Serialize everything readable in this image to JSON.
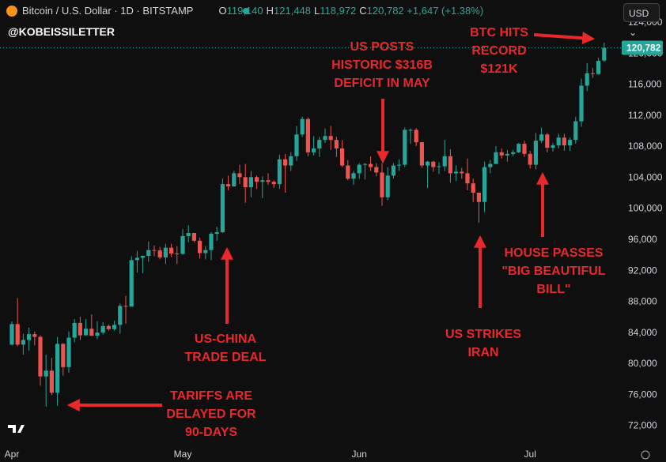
{
  "header": {
    "title": "Bitcoin / U.S. Dollar · 1D · BITSTAMP",
    "ohlc": [
      {
        "key": "O",
        "value": "119,140"
      },
      {
        "key": "H",
        "value": "121,448"
      },
      {
        "key": "L",
        "value": "118,972"
      },
      {
        "key": "C",
        "value": "120,782"
      }
    ],
    "change": "+1,647 (+1.38%)",
    "watermark": "@KOBEISSILETTER",
    "currency": "USD"
  },
  "chart_data": {
    "type": "candlestick",
    "up_color": "#26a69a",
    "down_color": "#ef5350",
    "grid": false,
    "categories": [
      "Apr",
      null,
      null,
      null,
      null,
      null,
      null,
      null,
      null,
      null,
      null,
      null,
      null,
      null,
      null,
      null,
      null,
      null,
      null,
      null,
      null,
      null,
      null,
      null,
      null,
      null,
      null,
      null,
      null,
      null,
      "May",
      null,
      null,
      null,
      null,
      null,
      null,
      null,
      null,
      null,
      null,
      null,
      null,
      null,
      null,
      null,
      null,
      null,
      null,
      null,
      null,
      null,
      null,
      null,
      null,
      null,
      null,
      null,
      null,
      null,
      null,
      "Jun",
      null,
      null,
      null,
      null,
      null,
      null,
      null,
      null,
      null,
      null,
      null,
      null,
      null,
      null,
      null,
      null,
      null,
      null,
      null,
      null,
      null,
      null,
      null,
      null,
      null,
      null,
      null,
      null,
      null,
      "Jul",
      null,
      null,
      null,
      null,
      null,
      null,
      null,
      null,
      null,
      null,
      null,
      null,
      null
    ],
    "open": [
      82500,
      85150,
      82500,
      83100,
      83850,
      83500,
      78400,
      79150,
      76300,
      82600,
      79600,
      83400,
      85300,
      83700,
      84550,
      83650,
      84050,
      84900,
      84500,
      85050,
      87500,
      87400,
      93400,
      93700,
      93950,
      94700,
      94650,
      93750,
      95000,
      94250,
      94200,
      96500,
      96900,
      95900,
      94300,
      94700,
      96800,
      97000,
      103200,
      102900,
      104600,
      104100,
      102800,
      104100,
      103500,
      103700,
      103500,
      103200,
      106400,
      105600,
      106800,
      109600,
      111600,
      107300,
      107800,
      108900,
      109400,
      108900,
      107800,
      105600,
      103900,
      104600,
      105700,
      105800,
      105400,
      104700,
      101500,
      104300,
      105600,
      105700,
      110200,
      110200,
      108600,
      105600,
      106100,
      105400,
      105500,
      106800,
      104600,
      104800,
      104600,
      103300,
      102100,
      100900,
      105400,
      105800,
      107300,
      106900,
      107100,
      107300,
      108400,
      107100,
      105700,
      108800,
      109600,
      107900,
      108200,
      109200,
      108200,
      108900,
      111300,
      115900,
      117500,
      117400,
      119140
    ],
    "high": [
      85500,
      88500,
      83900,
      84700,
      84200,
      83700,
      81200,
      80800,
      83500,
      82700,
      84200,
      85800,
      86100,
      85800,
      86400,
      85500,
      85400,
      85100,
      85600,
      87800,
      88800,
      93900,
      94600,
      94000,
      95800,
      95300,
      95100,
      95500,
      95500,
      95200,
      97400,
      97900,
      96900,
      96300,
      95200,
      97000,
      97700,
      103900,
      104300,
      104900,
      105700,
      105800,
      104900,
      104300,
      104200,
      104600,
      103700,
      107000,
      107100,
      107300,
      110700,
      111900,
      111800,
      109400,
      109300,
      110400,
      110700,
      109300,
      108900,
      106300,
      104900,
      105900,
      105900,
      106800,
      105900,
      105900,
      105400,
      105900,
      106400,
      110500,
      110400,
      110400,
      108600,
      106200,
      106200,
      106000,
      108900,
      107700,
      105600,
      105300,
      106500,
      103900,
      102100,
      106100,
      106300,
      108100,
      107800,
      107600,
      107600,
      108500,
      108800,
      107500,
      109800,
      110500,
      109800,
      108500,
      109700,
      109700,
      109200,
      111900,
      116800,
      118800,
      118200,
      119500,
      121448
    ],
    "low": [
      82400,
      82300,
      81200,
      81700,
      82400,
      77200,
      74500,
      76000,
      74600,
      78500,
      78900,
      82800,
      83100,
      83700,
      83600,
      83200,
      83800,
      84300,
      84300,
      83900,
      85200,
      87400,
      91800,
      91700,
      93200,
      93900,
      93500,
      92900,
      93800,
      92900,
      94100,
      95700,
      95700,
      93600,
      93500,
      93400,
      95900,
      96900,
      102400,
      102900,
      103200,
      100800,
      101500,
      102600,
      101400,
      103100,
      102700,
      102600,
      102100,
      104900,
      106200,
      109300,
      106800,
      106900,
      106700,
      108500,
      107600,
      106700,
      105400,
      103700,
      103100,
      103900,
      103800,
      104900,
      104200,
      100400,
      101100,
      103900,
      104900,
      105400,
      108400,
      108100,
      105300,
      102700,
      104800,
      104500,
      104900,
      103400,
      103600,
      103900,
      102400,
      100900,
      98200,
      99600,
      104600,
      105800,
      106500,
      106100,
      106800,
      107200,
      106700,
      105200,
      105100,
      108500,
      107300,
      107400,
      107800,
      107500,
      107500,
      108400,
      110600,
      115200,
      116900,
      117300,
      118972
    ],
    "close": [
      85150,
      82500,
      83100,
      83850,
      83500,
      78400,
      79150,
      76300,
      82600,
      79600,
      83400,
      85300,
      83700,
      84550,
      83650,
      84050,
      84900,
      84500,
      85050,
      87500,
      87400,
      93400,
      93700,
      93950,
      94700,
      94650,
      93750,
      95000,
      94250,
      94200,
      96500,
      96900,
      95900,
      94300,
      94700,
      96800,
      97000,
      103200,
      102900,
      104600,
      104100,
      102800,
      104100,
      103500,
      103700,
      103500,
      103200,
      106400,
      105600,
      106800,
      109600,
      111600,
      107300,
      107800,
      108900,
      109400,
      108900,
      107800,
      105600,
      103900,
      104600,
      105700,
      105800,
      105400,
      104700,
      101500,
      104300,
      105600,
      105700,
      110200,
      110200,
      108600,
      105600,
      106100,
      105400,
      105500,
      106800,
      104600,
      104800,
      104600,
      103300,
      102100,
      100900,
      105400,
      105800,
      107300,
      106900,
      107100,
      107300,
      108400,
      107100,
      105700,
      108800,
      109600,
      107900,
      108200,
      109200,
      108200,
      108900,
      111300,
      115900,
      117500,
      117400,
      119100,
      120782
    ],
    "last_price": {
      "value": 120782,
      "label": "120,782"
    },
    "ylim": [
      69400,
      124400
    ],
    "yticks": [
      {
        "value": 72000,
        "label": "72,000"
      },
      {
        "value": 76000,
        "label": "76,000"
      },
      {
        "value": 80000,
        "label": "80,000"
      },
      {
        "value": 84000,
        "label": "84,000"
      },
      {
        "value": 88000,
        "label": "88,000"
      },
      {
        "value": 92000,
        "label": "92,000"
      },
      {
        "value": 96000,
        "label": "96,000"
      },
      {
        "value": 100000,
        "label": "100,000"
      },
      {
        "value": 104000,
        "label": "104,000"
      },
      {
        "value": 108000,
        "label": "108,000"
      },
      {
        "value": 112000,
        "label": "112,000"
      },
      {
        "value": 116000,
        "label": "116,000"
      },
      {
        "value": 120000,
        "label": "120,000"
      },
      {
        "value": 124000,
        "label": "124,000"
      }
    ],
    "annotations": [
      [
        "TARIFFS ARE",
        "DELAYED FOR",
        "90-DAYS"
      ],
      [
        "US-CHINA",
        "TRADE DEAL"
      ],
      [
        "US POSTS",
        "HISTORIC $316B",
        "DEFICIT IN MAY"
      ],
      [
        "US STRIKES",
        "IRAN"
      ],
      [
        "HOUSE PASSES",
        "\"BIG BEAUTIFUL",
        "BILL\""
      ],
      [
        "BTC HITS",
        "RECORD",
        "$121K"
      ]
    ]
  }
}
